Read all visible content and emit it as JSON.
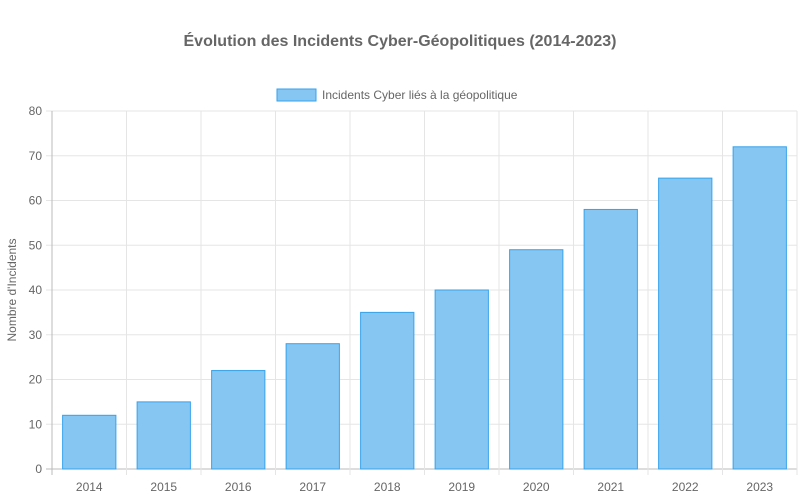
{
  "chart_data": {
    "type": "bar",
    "title": "Évolution des Incidents Cyber-Géopolitiques (2014-2023)",
    "xlabel": "",
    "ylabel": "Nombre d'Incidents",
    "categories": [
      "2014",
      "2015",
      "2016",
      "2017",
      "2018",
      "2019",
      "2020",
      "2021",
      "2022",
      "2023"
    ],
    "series": [
      {
        "name": "Incidents Cyber liés à la géopolitique",
        "values": [
          12,
          15,
          22,
          28,
          35,
          40,
          49,
          58,
          65,
          72
        ]
      }
    ],
    "ylim": [
      0,
      80
    ],
    "yticks": [
      "0",
      "10",
      "20",
      "30",
      "40",
      "50",
      "60",
      "70",
      "80"
    ],
    "grid": true,
    "legend_position": "top",
    "colors": {
      "bar_fill": "#85c6f3",
      "bar_border": "#36a2eb",
      "grid": "#e5e5e5",
      "text": "#666666"
    }
  }
}
